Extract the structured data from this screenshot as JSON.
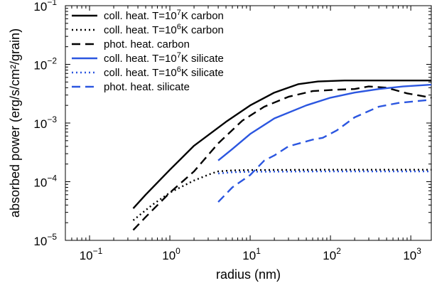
{
  "chart_data": {
    "type": "line",
    "xlabel": "radius (nm)",
    "ylabel": "absorbed power (erg/s/cm²/grain)",
    "xscale": "log",
    "yscale": "log",
    "xlim": [
      0.05,
      1800
    ],
    "ylim": [
      1e-05,
      0.1
    ],
    "xticks": [
      {
        "value": 0.1,
        "base": "10",
        "exp": "−1"
      },
      {
        "value": 1,
        "base": "10",
        "exp": "0"
      },
      {
        "value": 10,
        "base": "10",
        "exp": "1"
      },
      {
        "value": 100,
        "base": "10",
        "exp": "2"
      },
      {
        "value": 1000,
        "base": "10",
        "exp": "3"
      }
    ],
    "yticks": [
      {
        "value": 1e-05,
        "base": "10",
        "exp": "−5"
      },
      {
        "value": 0.0001,
        "base": "10",
        "exp": "−4"
      },
      {
        "value": 0.001,
        "base": "10",
        "exp": "−3"
      },
      {
        "value": 0.01,
        "base": "10",
        "exp": "−2"
      },
      {
        "value": 0.1,
        "base": "10",
        "exp": "−1"
      }
    ],
    "legend_position": "top-left",
    "series": [
      {
        "name_parts": [
          "coll. heat. T=10",
          "7",
          "K carbon"
        ],
        "color": "#000000",
        "style": "solid",
        "points": [
          [
            0.35,
            3.5e-05
          ],
          [
            0.5,
            6e-05
          ],
          [
            1,
            0.00016
          ],
          [
            2,
            0.00041
          ],
          [
            5,
            0.00105
          ],
          [
            10,
            0.002
          ],
          [
            20,
            0.0033
          ],
          [
            40,
            0.0046
          ],
          [
            70,
            0.0051
          ],
          [
            150,
            0.0053
          ],
          [
            500,
            0.0053
          ],
          [
            1800,
            0.0053
          ]
        ]
      },
      {
        "name_parts": [
          "coll. heat. T=10",
          "6",
          "K carbon"
        ],
        "color": "#000000",
        "style": "dotted",
        "points": [
          [
            0.35,
            2.2e-05
          ],
          [
            0.6,
            4e-05
          ],
          [
            1,
            6.5e-05
          ],
          [
            2,
            0.000105
          ],
          [
            3.3,
            0.000138
          ],
          [
            4,
            0.00015
          ],
          [
            6,
            0.000156
          ],
          [
            10,
            0.000158
          ],
          [
            100,
            0.00016
          ],
          [
            1800,
            0.00016
          ]
        ]
      },
      {
        "name_parts": [
          "phot. heat. carbon"
        ],
        "color": "#000000",
        "style": "dashed",
        "points": [
          [
            0.35,
            1.5e-05
          ],
          [
            0.5,
            2.5e-05
          ],
          [
            1,
            6.5e-05
          ],
          [
            2,
            0.00015
          ],
          [
            4,
            0.00045
          ],
          [
            8,
            0.0011
          ],
          [
            15,
            0.0019
          ],
          [
            30,
            0.0028
          ],
          [
            60,
            0.0035
          ],
          [
            120,
            0.0037
          ],
          [
            200,
            0.0038
          ],
          [
            300,
            0.0042
          ],
          [
            500,
            0.004
          ],
          [
            900,
            0.0032
          ],
          [
            1800,
            0.0027
          ]
        ]
      },
      {
        "name_parts": [
          "coll. heat. T=10",
          "7",
          "K silicate"
        ],
        "color": "#2b56e0",
        "style": "solid",
        "points": [
          [
            4,
            0.00023
          ],
          [
            6,
            0.00036
          ],
          [
            10,
            0.00065
          ],
          [
            20,
            0.0012
          ],
          [
            50,
            0.002
          ],
          [
            100,
            0.0027
          ],
          [
            200,
            0.0033
          ],
          [
            400,
            0.0038
          ],
          [
            800,
            0.0042
          ],
          [
            1800,
            0.0045
          ]
        ]
      },
      {
        "name_parts": [
          "coll. heat. T=10",
          "6",
          "K silicate"
        ],
        "color": "#2b56e0",
        "style": "dotted",
        "points": [
          [
            4,
            0.000138
          ],
          [
            6,
            0.000145
          ],
          [
            10,
            0.000148
          ],
          [
            100,
            0.00015
          ],
          [
            1800,
            0.00015
          ]
        ]
      },
      {
        "name_parts": [
          "phot. heat. silicate"
        ],
        "color": "#2b56e0",
        "style": "dashed",
        "points": [
          [
            4,
            4.5e-05
          ],
          [
            6,
            8e-05
          ],
          [
            10,
            0.00013
          ],
          [
            15,
            0.00023
          ],
          [
            20,
            0.00028
          ],
          [
            30,
            0.0004
          ],
          [
            60,
            0.00052
          ],
          [
            80,
            0.00056
          ],
          [
            120,
            0.00075
          ],
          [
            200,
            0.00125
          ],
          [
            400,
            0.0019
          ],
          [
            700,
            0.0022
          ],
          [
            1800,
            0.0025
          ]
        ]
      }
    ]
  }
}
